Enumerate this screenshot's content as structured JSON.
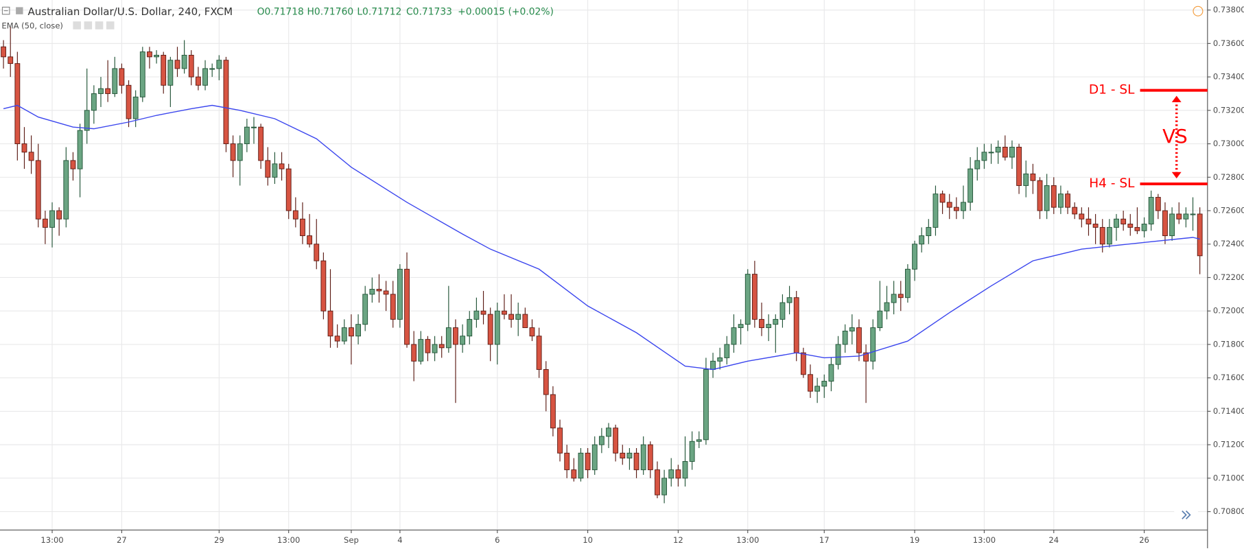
{
  "header": {
    "symbol": "Australian Dollar/U.S. Dollar, 240, FXCM",
    "open": "O0.71718",
    "high": "H0.71760",
    "low": "L0.71712",
    "close": "C0.71733",
    "change": "+0.00015 (+0.02%)"
  },
  "chart_data": {
    "type": "candlestick",
    "up_color": "#6ba583",
    "down_color": "#d75442",
    "up_border": "#225437",
    "down_border": "#5b1a13",
    "ohlc": [
      [
        0.7358,
        0.7362,
        0.7345,
        0.7352
      ],
      [
        0.7352,
        0.737,
        0.734,
        0.7348
      ],
      [
        0.7348,
        0.7355,
        0.729,
        0.73
      ],
      [
        0.73,
        0.731,
        0.7285,
        0.7295
      ],
      [
        0.7295,
        0.7305,
        0.7282,
        0.729
      ],
      [
        0.729,
        0.73,
        0.725,
        0.7255
      ],
      [
        0.7255,
        0.726,
        0.724,
        0.725
      ],
      [
        0.725,
        0.7265,
        0.7238,
        0.726
      ],
      [
        0.726,
        0.7262,
        0.7245,
        0.7255
      ],
      [
        0.7255,
        0.7298,
        0.725,
        0.729
      ],
      [
        0.729,
        0.7295,
        0.7278,
        0.7285
      ],
      [
        0.7285,
        0.7312,
        0.7268,
        0.7308
      ],
      [
        0.7308,
        0.7345,
        0.73,
        0.732
      ],
      [
        0.732,
        0.7335,
        0.7312,
        0.733
      ],
      [
        0.733,
        0.734,
        0.7322,
        0.7333
      ],
      [
        0.7333,
        0.735,
        0.7325,
        0.733
      ],
      [
        0.733,
        0.7352,
        0.7328,
        0.7345
      ],
      [
        0.7345,
        0.7348,
        0.733,
        0.7335
      ],
      [
        0.7335,
        0.7338,
        0.731,
        0.7315
      ],
      [
        0.7315,
        0.7332,
        0.731,
        0.7328
      ],
      [
        0.7328,
        0.7358,
        0.7325,
        0.7355
      ],
      [
        0.7355,
        0.7358,
        0.7345,
        0.7352
      ],
      [
        0.7352,
        0.7356,
        0.7348,
        0.7353
      ],
      [
        0.7353,
        0.7355,
        0.733,
        0.7335
      ],
      [
        0.7335,
        0.7352,
        0.7322,
        0.735
      ],
      [
        0.735,
        0.7358,
        0.734,
        0.7345
      ],
      [
        0.7345,
        0.7362,
        0.7342,
        0.7353
      ],
      [
        0.7353,
        0.7356,
        0.7335,
        0.734
      ],
      [
        0.734,
        0.7346,
        0.7332,
        0.7335
      ],
      [
        0.7335,
        0.735,
        0.7332,
        0.7345
      ],
      [
        0.7345,
        0.7348,
        0.734,
        0.7345
      ],
      [
        0.7345,
        0.7353,
        0.7338,
        0.735
      ],
      [
        0.735,
        0.7352,
        0.7295,
        0.73
      ],
      [
        0.73,
        0.7305,
        0.728,
        0.729
      ],
      [
        0.729,
        0.7305,
        0.7275,
        0.73
      ],
      [
        0.73,
        0.7315,
        0.7295,
        0.731
      ],
      [
        0.731,
        0.7316,
        0.73,
        0.731
      ],
      [
        0.731,
        0.7312,
        0.7285,
        0.729
      ],
      [
        0.729,
        0.7298,
        0.7275,
        0.728
      ],
      [
        0.728,
        0.7295,
        0.7276,
        0.7288
      ],
      [
        0.7288,
        0.7295,
        0.7278,
        0.7285
      ],
      [
        0.7285,
        0.7288,
        0.7255,
        0.726
      ],
      [
        0.726,
        0.7268,
        0.725,
        0.7255
      ],
      [
        0.7255,
        0.7265,
        0.724,
        0.7245
      ],
      [
        0.7245,
        0.7258,
        0.7238,
        0.724
      ],
      [
        0.724,
        0.7255,
        0.7225,
        0.723
      ],
      [
        0.723,
        0.7235,
        0.7195,
        0.72
      ],
      [
        0.72,
        0.7225,
        0.7178,
        0.7185
      ],
      [
        0.7185,
        0.7192,
        0.7178,
        0.7182
      ],
      [
        0.7182,
        0.7195,
        0.718,
        0.719
      ],
      [
        0.719,
        0.7198,
        0.7168,
        0.7185
      ],
      [
        0.7185,
        0.7198,
        0.718,
        0.7192
      ],
      [
        0.7192,
        0.7215,
        0.7188,
        0.721
      ],
      [
        0.721,
        0.722,
        0.7205,
        0.7213
      ],
      [
        0.7213,
        0.7222,
        0.7205,
        0.7212
      ],
      [
        0.7212,
        0.7218,
        0.72,
        0.721
      ],
      [
        0.721,
        0.7218,
        0.719,
        0.7195
      ],
      [
        0.7195,
        0.7228,
        0.719,
        0.7225
      ],
      [
        0.7225,
        0.7235,
        0.7178,
        0.718
      ],
      [
        0.718,
        0.7188,
        0.7158,
        0.717
      ],
      [
        0.717,
        0.7188,
        0.7168,
        0.7183
      ],
      [
        0.7183,
        0.7185,
        0.717,
        0.7175
      ],
      [
        0.7175,
        0.7185,
        0.717,
        0.718
      ],
      [
        0.718,
        0.7185,
        0.7172,
        0.7178
      ],
      [
        0.7178,
        0.7215,
        0.7175,
        0.719
      ],
      [
        0.719,
        0.7195,
        0.7145,
        0.718
      ],
      [
        0.718,
        0.7192,
        0.7175,
        0.7185
      ],
      [
        0.7185,
        0.72,
        0.718,
        0.7195
      ],
      [
        0.7195,
        0.7208,
        0.719,
        0.72
      ],
      [
        0.72,
        0.7212,
        0.7192,
        0.7198
      ],
      [
        0.7198,
        0.7202,
        0.717,
        0.718
      ],
      [
        0.718,
        0.7205,
        0.7168,
        0.72
      ],
      [
        0.72,
        0.721,
        0.7195,
        0.7198
      ],
      [
        0.7198,
        0.721,
        0.719,
        0.7195
      ],
      [
        0.7195,
        0.7205,
        0.7185,
        0.7198
      ],
      [
        0.7198,
        0.7202,
        0.719,
        0.719
      ],
      [
        0.719,
        0.7195,
        0.7182,
        0.7185
      ],
      [
        0.7185,
        0.719,
        0.716,
        0.7165
      ],
      [
        0.7165,
        0.717,
        0.714,
        0.715
      ],
      [
        0.715,
        0.7155,
        0.7125,
        0.713
      ],
      [
        0.713,
        0.7135,
        0.711,
        0.7115
      ],
      [
        0.7115,
        0.712,
        0.71,
        0.7105
      ],
      [
        0.7105,
        0.7112,
        0.7098,
        0.71
      ],
      [
        0.71,
        0.7118,
        0.7098,
        0.7115
      ],
      [
        0.7115,
        0.7118,
        0.71,
        0.7105
      ],
      [
        0.7105,
        0.7125,
        0.7102,
        0.712
      ],
      [
        0.712,
        0.713,
        0.7115,
        0.7125
      ],
      [
        0.7125,
        0.7133,
        0.7118,
        0.713
      ],
      [
        0.713,
        0.7132,
        0.711,
        0.7115
      ],
      [
        0.7115,
        0.712,
        0.7108,
        0.7112
      ],
      [
        0.7112,
        0.7118,
        0.7105,
        0.7115
      ],
      [
        0.7115,
        0.7118,
        0.71,
        0.7105
      ],
      [
        0.7105,
        0.7125,
        0.7102,
        0.712
      ],
      [
        0.712,
        0.7122,
        0.71,
        0.7105
      ],
      [
        0.7105,
        0.711,
        0.7088,
        0.709
      ],
      [
        0.709,
        0.7105,
        0.7085,
        0.71
      ],
      [
        0.71,
        0.7112,
        0.7095,
        0.7105
      ],
      [
        0.7105,
        0.7108,
        0.7095,
        0.71
      ],
      [
        0.71,
        0.7125,
        0.7095,
        0.711
      ],
      [
        0.711,
        0.7128,
        0.7105,
        0.7122
      ],
      [
        0.7122,
        0.7128,
        0.7118,
        0.7123
      ],
      [
        0.7123,
        0.7172,
        0.712,
        0.7165
      ],
      [
        0.7165,
        0.7175,
        0.716,
        0.717
      ],
      [
        0.717,
        0.7178,
        0.7165,
        0.7172
      ],
      [
        0.7172,
        0.7185,
        0.7168,
        0.718
      ],
      [
        0.718,
        0.7198,
        0.7175,
        0.719
      ],
      [
        0.719,
        0.7195,
        0.718,
        0.7192
      ],
      [
        0.7192,
        0.7225,
        0.7188,
        0.7222
      ],
      [
        0.7222,
        0.723,
        0.719,
        0.7195
      ],
      [
        0.7195,
        0.7205,
        0.7185,
        0.719
      ],
      [
        0.719,
        0.7198,
        0.7182,
        0.7192
      ],
      [
        0.7192,
        0.7198,
        0.7175,
        0.7195
      ],
      [
        0.7195,
        0.721,
        0.719,
        0.7205
      ],
      [
        0.7205,
        0.7215,
        0.7198,
        0.7208
      ],
      [
        0.7208,
        0.7212,
        0.717,
        0.7175
      ],
      [
        0.7175,
        0.7178,
        0.716,
        0.7162
      ],
      [
        0.7162,
        0.7168,
        0.7148,
        0.7152
      ],
      [
        0.7152,
        0.716,
        0.7145,
        0.7155
      ],
      [
        0.7155,
        0.7162,
        0.7148,
        0.7158
      ],
      [
        0.7158,
        0.7172,
        0.7152,
        0.7168
      ],
      [
        0.7168,
        0.7185,
        0.7165,
        0.718
      ],
      [
        0.718,
        0.7192,
        0.7175,
        0.7188
      ],
      [
        0.7188,
        0.7198,
        0.718,
        0.719
      ],
      [
        0.719,
        0.7195,
        0.717,
        0.7175
      ],
      [
        0.7175,
        0.718,
        0.7145,
        0.717
      ],
      [
        0.717,
        0.7195,
        0.7165,
        0.719
      ],
      [
        0.719,
        0.7218,
        0.7188,
        0.72
      ],
      [
        0.72,
        0.7215,
        0.7195,
        0.7205
      ],
      [
        0.7205,
        0.7218,
        0.7198,
        0.721
      ],
      [
        0.721,
        0.7218,
        0.72,
        0.7208
      ],
      [
        0.7208,
        0.7228,
        0.7205,
        0.7225
      ],
      [
        0.7225,
        0.7242,
        0.7218,
        0.724
      ],
      [
        0.724,
        0.725,
        0.7235,
        0.7245
      ],
      [
        0.7245,
        0.7255,
        0.724,
        0.725
      ],
      [
        0.725,
        0.7275,
        0.7245,
        0.727
      ],
      [
        0.727,
        0.7272,
        0.7258,
        0.7265
      ],
      [
        0.7265,
        0.727,
        0.7255,
        0.7262
      ],
      [
        0.7262,
        0.7268,
        0.7255,
        0.726
      ],
      [
        0.726,
        0.7275,
        0.7255,
        0.7265
      ],
      [
        0.7265,
        0.7292,
        0.726,
        0.7285
      ],
      [
        0.7285,
        0.7298,
        0.7278,
        0.729
      ],
      [
        0.729,
        0.73,
        0.7285,
        0.7295
      ],
      [
        0.7295,
        0.73,
        0.7288,
        0.7295
      ],
      [
        0.7295,
        0.7302,
        0.7288,
        0.7298
      ],
      [
        0.7298,
        0.7305,
        0.729,
        0.7292
      ],
      [
        0.7292,
        0.7302,
        0.7285,
        0.7298
      ],
      [
        0.7298,
        0.73,
        0.727,
        0.7275
      ],
      [
        0.7275,
        0.729,
        0.7268,
        0.7282
      ],
      [
        0.7282,
        0.7288,
        0.727,
        0.7278
      ],
      [
        0.7278,
        0.728,
        0.7255,
        0.726
      ],
      [
        0.726,
        0.7282,
        0.7255,
        0.7275
      ],
      [
        0.7275,
        0.728,
        0.7258,
        0.7262
      ],
      [
        0.7262,
        0.7275,
        0.7258,
        0.727
      ],
      [
        0.727,
        0.7272,
        0.7258,
        0.7262
      ],
      [
        0.7262,
        0.7265,
        0.7255,
        0.7258
      ],
      [
        0.7258,
        0.7262,
        0.725,
        0.7255
      ],
      [
        0.7255,
        0.7262,
        0.7245,
        0.7252
      ],
      [
        0.7252,
        0.7258,
        0.724,
        0.725
      ],
      [
        0.725,
        0.7255,
        0.7235,
        0.724
      ],
      [
        0.724,
        0.7255,
        0.7238,
        0.725
      ],
      [
        0.725,
        0.7258,
        0.7242,
        0.7255
      ],
      [
        0.7255,
        0.726,
        0.7248,
        0.7252
      ],
      [
        0.7252,
        0.7258,
        0.7245,
        0.725
      ],
      [
        0.725,
        0.7262,
        0.7246,
        0.7248
      ],
      [
        0.7248,
        0.7256,
        0.7244,
        0.7252
      ],
      [
        0.7252,
        0.7272,
        0.7248,
        0.7268
      ],
      [
        0.7268,
        0.727,
        0.7255,
        0.726
      ],
      [
        0.726,
        0.7265,
        0.724,
        0.7245
      ],
      [
        0.7245,
        0.7262,
        0.7242,
        0.7258
      ],
      [
        0.7258,
        0.7265,
        0.7252,
        0.7255
      ],
      [
        0.7255,
        0.7262,
        0.725,
        0.7258
      ],
      [
        0.7258,
        0.7268,
        0.7248,
        0.7258
      ],
      [
        0.7258,
        0.7262,
        0.7222,
        0.7233
      ]
    ],
    "series": [
      {
        "name": "EMA (50, close)",
        "color": "#3a45ee",
        "x": [
          0,
          2,
          5,
          10,
          13,
          18,
          22,
          27,
          30,
          34,
          39,
          45,
          50,
          58,
          66,
          70,
          77,
          84,
          91,
          98,
          102,
          107,
          114,
          118,
          123,
          130,
          136,
          142,
          148,
          155,
          164,
          171,
          172
        ],
        "values": [
          0.7321,
          0.7323,
          0.7316,
          0.731,
          0.7309,
          0.7313,
          0.7317,
          0.7321,
          0.7323,
          0.732,
          0.7315,
          0.7303,
          0.7286,
          0.7265,
          0.7246,
          0.7237,
          0.7225,
          0.7203,
          0.7187,
          0.7167,
          0.7165,
          0.717,
          0.7175,
          0.7172,
          0.7173,
          0.7182,
          0.7199,
          0.7215,
          0.723,
          0.7237,
          0.7241,
          0.7244,
          0.7243
        ]
      }
    ],
    "xlim": [
      -0.5,
      173.1
    ],
    "ylim": [
      0.7069,
      0.7386
    ],
    "xticks": [
      {
        "value": 7,
        "label": "13:00"
      },
      {
        "value": 17,
        "label": "27"
      },
      {
        "value": 31,
        "label": "29"
      },
      {
        "value": 41,
        "label": "13:00"
      },
      {
        "value": 50,
        "label": "Sep"
      },
      {
        "value": 57,
        "label": "4"
      },
      {
        "value": 71,
        "label": "6"
      },
      {
        "value": 84,
        "label": "10"
      },
      {
        "value": 97,
        "label": "12"
      },
      {
        "value": 107,
        "label": "13:00"
      },
      {
        "value": 118,
        "label": "17"
      },
      {
        "value": 131,
        "label": "19"
      },
      {
        "value": 141,
        "label": "13:00"
      },
      {
        "value": 151,
        "label": "24"
      },
      {
        "value": 164,
        "label": "26"
      }
    ],
    "yticks": [
      {
        "value": 0.738,
        "label": "0.73800"
      },
      {
        "value": 0.736,
        "label": "0.73600"
      },
      {
        "value": 0.734,
        "label": "0.73400"
      },
      {
        "value": 0.732,
        "label": "0.73200"
      },
      {
        "value": 0.73,
        "label": "0.73000"
      },
      {
        "value": 0.728,
        "label": "0.72800"
      },
      {
        "value": 0.726,
        "label": "0.72600"
      },
      {
        "value": 0.724,
        "label": "0.72400"
      },
      {
        "value": 0.722,
        "label": "0.72200"
      },
      {
        "value": 0.72,
        "label": "0.72000"
      },
      {
        "value": 0.718,
        "label": "0.71800"
      },
      {
        "value": 0.716,
        "label": "0.71600"
      },
      {
        "value": 0.714,
        "label": "0.71400"
      },
      {
        "value": 0.712,
        "label": "0.71200"
      },
      {
        "value": 0.71,
        "label": "0.71000"
      },
      {
        "value": 0.708,
        "label": "0.70800"
      }
    ],
    "grid": true,
    "levels": [
      {
        "label": "D1 - SL",
        "value": 0.7332,
        "color": "#ff0000"
      },
      {
        "label": "H4 - SL",
        "value": 0.7276,
        "color": "#ff0000"
      }
    ],
    "comparison_label": "VS"
  }
}
